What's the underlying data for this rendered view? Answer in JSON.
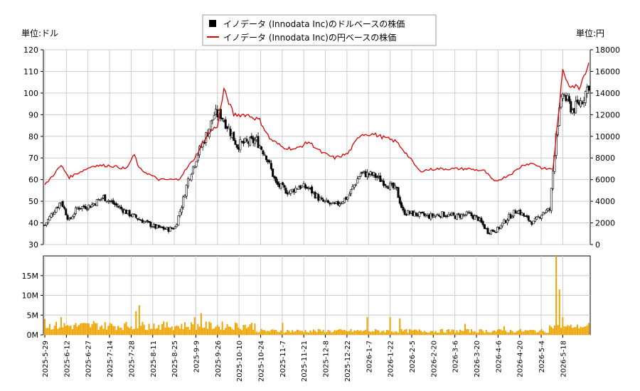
{
  "chart_data": {
    "type": "line",
    "legend": {
      "placement": "top-center",
      "entries": [
        {
          "label": "イノデータ (Innodata Inc)のドルベースの株価",
          "marker": "black-square"
        },
        {
          "label": "イノデータ (Innodata Inc)の円ベースの株価",
          "marker": "red-line"
        }
      ]
    },
    "left_unit": "単位:ドル",
    "right_unit": "単位:円",
    "y_left": {
      "min": 30,
      "max": 120,
      "ticks": [
        "30",
        "40",
        "50",
        "60",
        "70",
        "80",
        "90",
        "100",
        "110",
        "120"
      ]
    },
    "y_right": {
      "min": 0,
      "max": 18000,
      "ticks": [
        "0",
        "2000",
        "4000",
        "6000",
        "8000",
        "10000",
        "12000",
        "14000",
        "16000",
        "18000"
      ]
    },
    "y_volume": {
      "min": 0,
      "max": 20000000,
      "ticks": [
        "0M",
        "5M",
        "10M",
        "15M"
      ]
    },
    "x_labels": [
      "2025-5-29",
      "2025-6-12",
      "2025-6-27",
      "2025-7-14",
      "2025-7-28",
      "2025-8-11",
      "2025-8-25",
      "2025-9-9",
      "2025-9-26",
      "2025-10-10",
      "2025-10-24",
      "2025-11-7",
      "2025-11-21",
      "2025-12-8",
      "2025-12-22",
      "2026-1-7",
      "2026-1-22",
      "2026-2-5",
      "2026-2-20",
      "2026-3-6",
      "2026-3-20",
      "2026-4-6",
      "2026-4-20",
      "2026-5-4",
      "2026-5-18"
    ],
    "colors": {
      "usd_candle": "#000000",
      "jpy_line": "#dd0000",
      "volume": "#f0a400",
      "grid": "#cccccc"
    },
    "usd_keypoints": [
      [
        0,
        39
      ],
      [
        5,
        45
      ],
      [
        10,
        50
      ],
      [
        15,
        41
      ],
      [
        20,
        47
      ],
      [
        28,
        48
      ],
      [
        36,
        52
      ],
      [
        44,
        48
      ],
      [
        52,
        44
      ],
      [
        60,
        41
      ],
      [
        68,
        38
      ],
      [
        76,
        37
      ],
      [
        80,
        38
      ],
      [
        84,
        48
      ],
      [
        88,
        60
      ],
      [
        94,
        72
      ],
      [
        100,
        82
      ],
      [
        104,
        90
      ],
      [
        108,
        90
      ],
      [
        112,
        85
      ],
      [
        118,
        76
      ],
      [
        124,
        77
      ],
      [
        130,
        78
      ],
      [
        136,
        71
      ],
      [
        142,
        58
      ],
      [
        150,
        54
      ],
      [
        156,
        57
      ],
      [
        162,
        56
      ],
      [
        170,
        50
      ],
      [
        178,
        48
      ],
      [
        186,
        52
      ],
      [
        194,
        63
      ],
      [
        202,
        62
      ],
      [
        210,
        58
      ],
      [
        216,
        55
      ],
      [
        220,
        45
      ],
      [
        228,
        44
      ],
      [
        236,
        43
      ],
      [
        244,
        44
      ],
      [
        252,
        43
      ],
      [
        260,
        44
      ],
      [
        266,
        42
      ],
      [
        272,
        36
      ],
      [
        278,
        37
      ],
      [
        284,
        42
      ],
      [
        290,
        46
      ],
      [
        296,
        42
      ],
      [
        300,
        40
      ],
      [
        306,
        45
      ],
      [
        310,
        46
      ],
      [
        314,
        82
      ],
      [
        318,
        100
      ],
      [
        324,
        92
      ],
      [
        330,
        97
      ],
      [
        334,
        104
      ]
    ],
    "jpy_keypoints": [
      [
        0,
        5500
      ],
      [
        5,
        6400
      ],
      [
        10,
        7300
      ],
      [
        15,
        6200
      ],
      [
        20,
        6600
      ],
      [
        30,
        7300
      ],
      [
        40,
        7300
      ],
      [
        50,
        7000
      ],
      [
        55,
        8300
      ],
      [
        58,
        7000
      ],
      [
        70,
        6000
      ],
      [
        82,
        6000
      ],
      [
        86,
        6800
      ],
      [
        92,
        8000
      ],
      [
        100,
        10200
      ],
      [
        106,
        11000
      ],
      [
        110,
        14300
      ],
      [
        116,
        12000
      ],
      [
        124,
        12000
      ],
      [
        132,
        11500
      ],
      [
        138,
        9800
      ],
      [
        146,
        9000
      ],
      [
        154,
        8800
      ],
      [
        162,
        9500
      ],
      [
        170,
        8500
      ],
      [
        178,
        8000
      ],
      [
        186,
        8400
      ],
      [
        194,
        10200
      ],
      [
        202,
        10200
      ],
      [
        210,
        9800
      ],
      [
        216,
        9500
      ],
      [
        222,
        8400
      ],
      [
        230,
        6800
      ],
      [
        240,
        7000
      ],
      [
        250,
        7000
      ],
      [
        260,
        7000
      ],
      [
        270,
        6800
      ],
      [
        276,
        5800
      ],
      [
        282,
        6200
      ],
      [
        288,
        6700
      ],
      [
        294,
        7400
      ],
      [
        300,
        7500
      ],
      [
        306,
        7000
      ],
      [
        312,
        7000
      ],
      [
        318,
        16000
      ],
      [
        322,
        14800
      ],
      [
        328,
        14500
      ],
      [
        334,
        16800
      ]
    ],
    "volume_spikes": [
      [
        0,
        4000000
      ],
      [
        10,
        4500000
      ],
      [
        30,
        3500000
      ],
      [
        56,
        6000000
      ],
      [
        58,
        7500000
      ],
      [
        64,
        2800000
      ],
      [
        92,
        4500000
      ],
      [
        96,
        5500000
      ],
      [
        146,
        3000000
      ],
      [
        198,
        4500000
      ],
      [
        212,
        4500000
      ],
      [
        218,
        4200000
      ],
      [
        258,
        2800000
      ],
      [
        282,
        2200000
      ],
      [
        314,
        20000000
      ],
      [
        316,
        11500000
      ],
      [
        318,
        4500000
      ],
      [
        334,
        3000000
      ]
    ]
  }
}
